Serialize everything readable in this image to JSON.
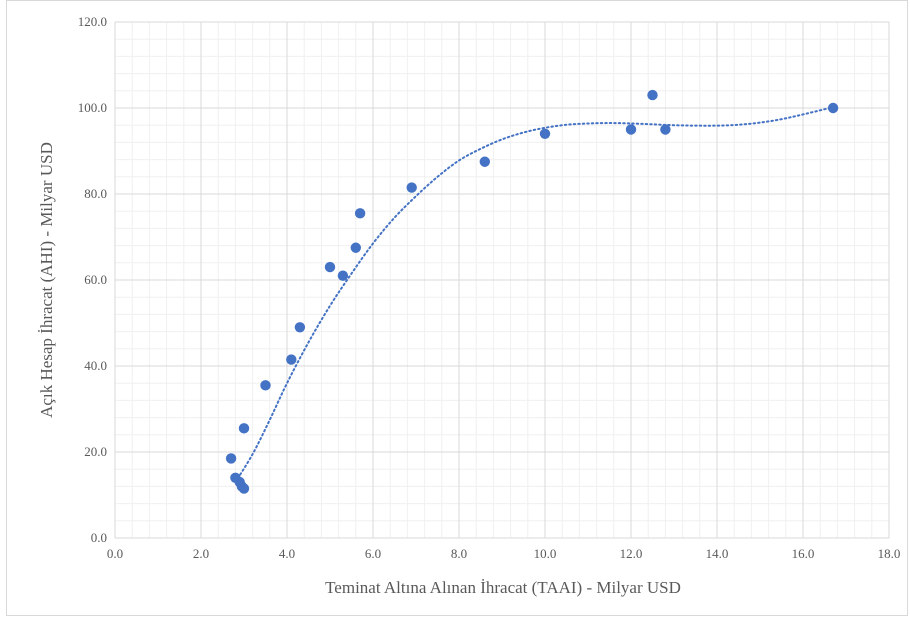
{
  "chart_data": {
    "type": "scatter",
    "title": "",
    "xlabel": "Teminat Altına Alınan İhracat (TAAI) - Milyar USD",
    "ylabel": "Açık Hesap İhracat (AHI) - Milyar USD",
    "xlim": [
      0,
      18
    ],
    "ylim": [
      0,
      120
    ],
    "x_ticks": [
      "0.0",
      "2.0",
      "4.0",
      "6.0",
      "8.0",
      "10.0",
      "12.0",
      "14.0",
      "16.0",
      "18.0"
    ],
    "y_ticks": [
      "0.0",
      "20.0",
      "40.0",
      "60.0",
      "80.0",
      "100.0",
      "120.0"
    ],
    "x_major_step": 2,
    "y_major_step": 20,
    "x_minor_step": 0.4,
    "y_minor_step": 4,
    "grid": true,
    "legend": "none",
    "colors": {
      "point": "#4472c4",
      "trendline": "#4472c4",
      "major_grid": "#d9d9d9",
      "minor_grid": "#f0f0f0"
    },
    "series": [
      {
        "points": [
          {
            "x": 2.7,
            "y": 18.5
          },
          {
            "x": 2.8,
            "y": 14.0
          },
          {
            "x": 2.9,
            "y": 13.0
          },
          {
            "x": 2.95,
            "y": 12.0
          },
          {
            "x": 3.0,
            "y": 11.5
          },
          {
            "x": 3.0,
            "y": 25.5
          },
          {
            "x": 3.5,
            "y": 35.5
          },
          {
            "x": 4.1,
            "y": 41.5
          },
          {
            "x": 4.3,
            "y": 49.0
          },
          {
            "x": 5.0,
            "y": 63.0
          },
          {
            "x": 5.3,
            "y": 61.0
          },
          {
            "x": 5.6,
            "y": 67.5
          },
          {
            "x": 5.7,
            "y": 75.5
          },
          {
            "x": 6.9,
            "y": 81.5
          },
          {
            "x": 8.6,
            "y": 87.5
          },
          {
            "x": 10.0,
            "y": 94.0
          },
          {
            "x": 12.0,
            "y": 95.0
          },
          {
            "x": 12.5,
            "y": 103.0
          },
          {
            "x": 12.8,
            "y": 95.0
          },
          {
            "x": 16.7,
            "y": 100.0
          }
        ]
      }
    ],
    "trendline": {
      "style": "dotted",
      "type": "polynomial",
      "points": [
        {
          "x": 2.8,
          "y": 13.0
        },
        {
          "x": 3.2,
          "y": 19.5
        },
        {
          "x": 3.6,
          "y": 27.5
        },
        {
          "x": 4.0,
          "y": 36.0
        },
        {
          "x": 4.5,
          "y": 45.5
        },
        {
          "x": 5.0,
          "y": 54.0
        },
        {
          "x": 5.5,
          "y": 61.5
        },
        {
          "x": 6.0,
          "y": 68.5
        },
        {
          "x": 6.5,
          "y": 74.5
        },
        {
          "x": 7.0,
          "y": 79.5
        },
        {
          "x": 7.5,
          "y": 84.0
        },
        {
          "x": 8.0,
          "y": 87.8
        },
        {
          "x": 8.5,
          "y": 90.5
        },
        {
          "x": 9.0,
          "y": 92.7
        },
        {
          "x": 9.5,
          "y": 94.3
        },
        {
          "x": 10.0,
          "y": 95.4
        },
        {
          "x": 10.5,
          "y": 96.1
        },
        {
          "x": 11.0,
          "y": 96.4
        },
        {
          "x": 11.5,
          "y": 96.5
        },
        {
          "x": 12.0,
          "y": 96.4
        },
        {
          "x": 12.5,
          "y": 96.2
        },
        {
          "x": 13.0,
          "y": 96.0
        },
        {
          "x": 13.5,
          "y": 95.9
        },
        {
          "x": 14.0,
          "y": 95.9
        },
        {
          "x": 14.5,
          "y": 96.1
        },
        {
          "x": 15.0,
          "y": 96.6
        },
        {
          "x": 15.5,
          "y": 97.4
        },
        {
          "x": 16.0,
          "y": 98.5
        },
        {
          "x": 16.7,
          "y": 100.2
        }
      ]
    }
  }
}
